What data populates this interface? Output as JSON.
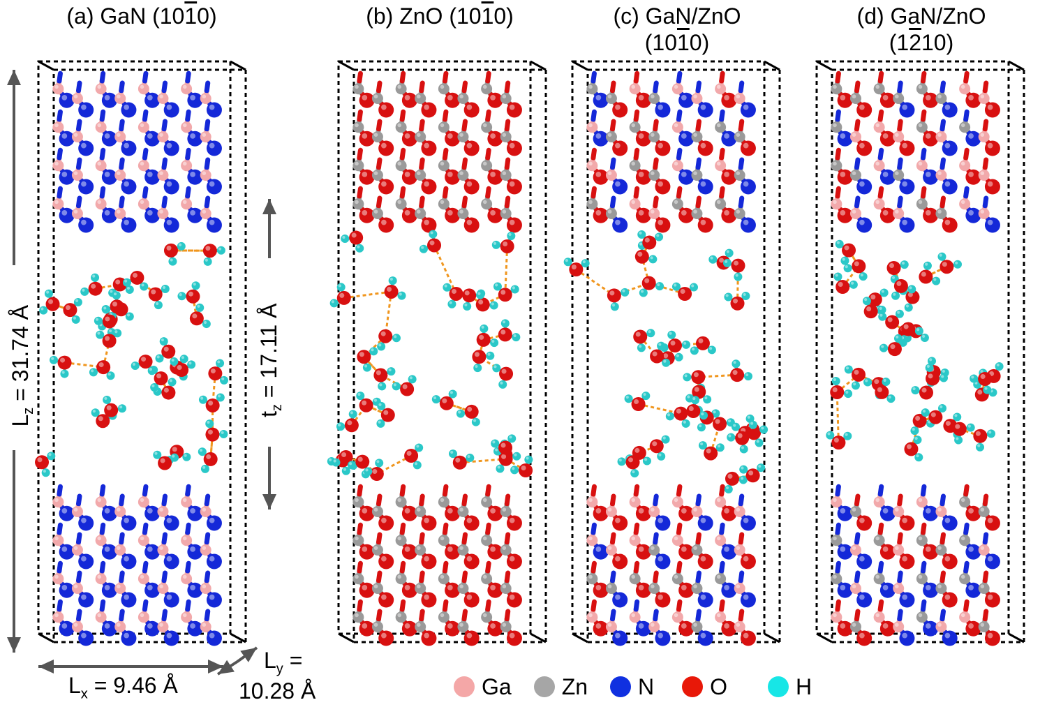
{
  "panels": [
    {
      "prefix": "(a) GaN (10",
      "bar": "1",
      "suffix": "0)",
      "line2": "",
      "type": "GaN"
    },
    {
      "prefix": "(b) ZnO (10",
      "bar": "1",
      "suffix": "0)",
      "line2": "",
      "type": "ZnO"
    },
    {
      "prefix": "(c) GaN/ZnO",
      "bar": "",
      "suffix": "",
      "line2_pre": "(10",
      "line2_bar": "1",
      "line2_suf": "0)",
      "type": "mix"
    },
    {
      "prefix": "(d) GaN/ZnO",
      "bar": "",
      "suffix": "",
      "line2_pre": "(1",
      "line2_bar": "2",
      "line2_suf": "10)",
      "type": "mix1210"
    }
  ],
  "dimensions": {
    "lz_symbol": "L",
    "lz_sub": "z",
    "lz_value": " = 31.74 Å",
    "tz_symbol": "t",
    "tz_sub": "z",
    "tz_value": " = 17.11 Å",
    "lx_symbol": "L",
    "lx_sub": "x",
    "lx_value": " = 9.46 Å",
    "ly_symbol": "L",
    "ly_sub": "y",
    "ly_value": " =",
    "ly_value2": "10.28 Å"
  },
  "legend": [
    {
      "label": "Ga",
      "color": "#f4a7a7"
    },
    {
      "label": "Zn",
      "color": "#a6a6a6"
    },
    {
      "label": "N",
      "color": "#1030e0"
    },
    {
      "label": "O",
      "color": "#e81808"
    },
    {
      "label": "H",
      "color": "#17e6e6"
    }
  ],
  "colors": {
    "Ga": "#f2a9ab",
    "Zn": "#9a9a9a",
    "N": "#1428d8",
    "O": "#d81010",
    "H": "#2ac8c8",
    "hbond": "#f0961e",
    "arrow": "#555555"
  }
}
